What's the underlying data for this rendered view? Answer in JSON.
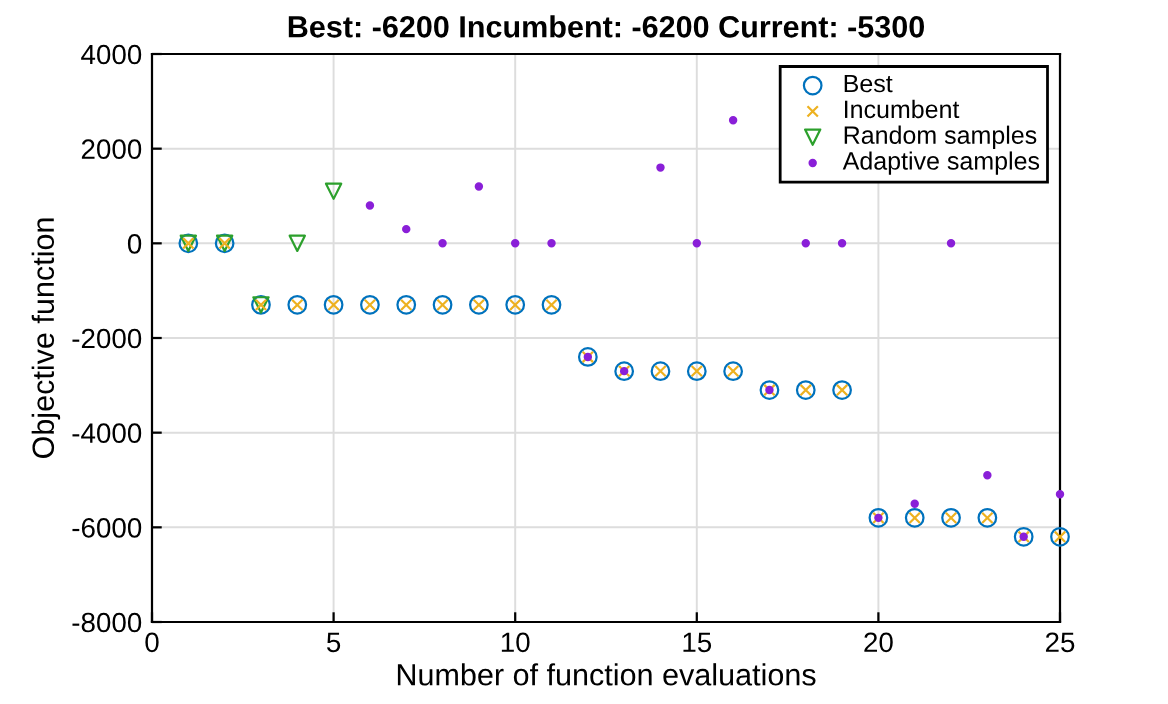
{
  "chart_data": {
    "type": "scatter",
    "title": "Best: -6200 Incumbent: -6200 Current: -5300",
    "xlabel": "Number of function evaluations",
    "ylabel": "Objective function",
    "series": [
      {
        "name": "Best",
        "color": "#0072bd",
        "marker": "circle",
        "x": [
          1,
          2,
          3,
          4,
          5,
          6,
          7,
          8,
          9,
          10,
          11,
          12,
          13,
          14,
          15,
          16,
          17,
          18,
          19,
          20,
          21,
          22,
          23,
          24,
          25
        ],
        "values": [
          0,
          0,
          -1300,
          -1300,
          -1300,
          -1300,
          -1300,
          -1300,
          -1300,
          -1300,
          -1300,
          -2400,
          -2700,
          -2700,
          -2700,
          -2700,
          -3100,
          -3100,
          -3100,
          -5800,
          -5800,
          -5800,
          -5800,
          -6200,
          -6200
        ]
      },
      {
        "name": "Incumbent",
        "color": "#edb120",
        "marker": "cross",
        "x": [
          1,
          2,
          3,
          4,
          5,
          6,
          7,
          8,
          9,
          10,
          11,
          12,
          13,
          14,
          15,
          16,
          17,
          18,
          19,
          20,
          21,
          22,
          23,
          24,
          25
        ],
        "values": [
          0,
          0,
          -1300,
          -1300,
          -1300,
          -1300,
          -1300,
          -1300,
          -1300,
          -1300,
          -1300,
          -2400,
          -2700,
          -2700,
          -2700,
          -2700,
          -3100,
          -3100,
          -3100,
          -5800,
          -5800,
          -5800,
          -5800,
          -6200,
          -6200
        ]
      },
      {
        "name": "Random samples",
        "color": "#2ca02c",
        "marker": "triangle",
        "x": [
          1,
          2,
          3,
          4,
          5
        ],
        "values": [
          0,
          0,
          -1300,
          0,
          1100
        ]
      },
      {
        "name": "Adaptive samples",
        "color": "#8a1fd8",
        "marker": "point",
        "x": [
          6,
          7,
          8,
          9,
          10,
          11,
          12,
          13,
          14,
          15,
          16,
          17,
          18,
          19,
          20,
          21,
          22,
          23,
          24,
          25
        ],
        "values": [
          800,
          300,
          0,
          1200,
          0,
          0,
          -2400,
          -2700,
          1600,
          0,
          2600,
          -3100,
          0,
          0,
          -5800,
          -5500,
          0,
          -4900,
          -6200,
          -5300
        ]
      }
    ],
    "xlim": [
      0,
      25
    ],
    "xticks": [
      0,
      5,
      10,
      15,
      20,
      25
    ],
    "ylim": [
      -8000,
      4000
    ],
    "yticks": [
      -8000,
      -6000,
      -4000,
      -2000,
      0,
      2000,
      4000
    ],
    "grid": true,
    "legend": "top right"
  }
}
